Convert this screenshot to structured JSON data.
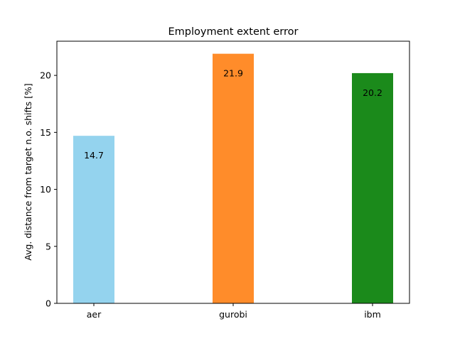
{
  "chart_data": {
    "type": "bar",
    "title": "Employment extent error",
    "xlabel": "",
    "ylabel": "Avg. distance from target n.o. shifts [%]",
    "categories": [
      "aer",
      "gurobi",
      "ibm"
    ],
    "values": [
      14.7,
      21.9,
      20.2
    ],
    "value_labels": [
      "14.7",
      "21.9",
      "20.2"
    ],
    "colors": [
      "#94d3ee",
      "#ff8c2a",
      "#1b8a1b"
    ],
    "ylim": [
      0,
      23
    ],
    "yticks": [
      0,
      5,
      10,
      15,
      20
    ],
    "grid": false,
    "legend": "none"
  }
}
